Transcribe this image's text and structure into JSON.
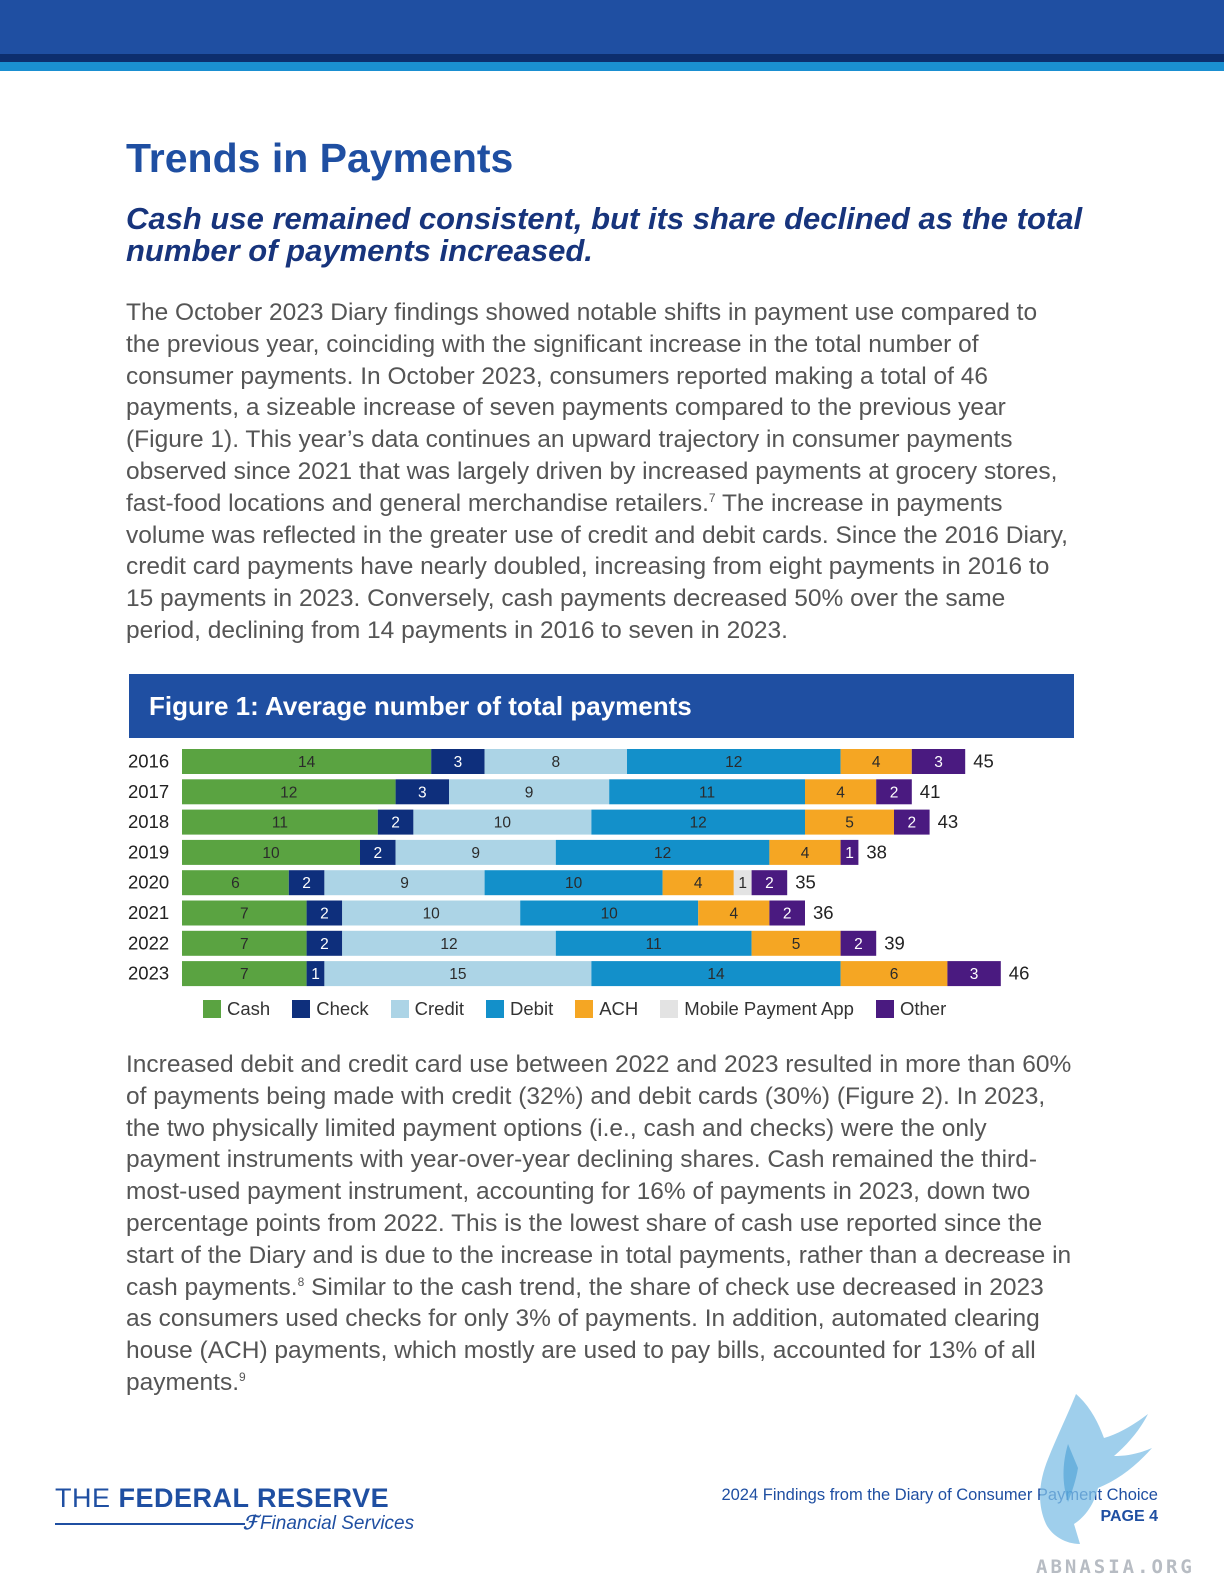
{
  "page": {
    "title": "Trends in Payments",
    "subtitle": "Cash use remained consistent, but its share declined as the total number of payments increased."
  },
  "paragraph1": {
    "text_before": "The October 2023 Diary findings showed notable shifts in payment use compared to the previous year, coinciding with the significant increase in the total number of consumer payments. In October 2023, consumers reported making a total of 46 payments, a sizeable increase of seven payments compared to the previous year (Figure 1). This year’s data continues an upward trajectory in consumer payments observed since 2021 that was largely driven by increased payments at grocery stores, fast-food locations and general merchandise retailers.",
    "footnote": "7",
    "text_after": " The increase in payments volume was reflected in the greater use of credit and debit cards. Since the 2016 Diary, credit card payments have nearly doubled, increasing from eight payments in 2016 to 15 payments in 2023. Conversely, cash payments decreased 50% over the same period, declining from 14 payments in 2016 to seven in 2023."
  },
  "figure": {
    "header": "Figure 1: Average number of total payments"
  },
  "chart_data": {
    "type": "bar",
    "orientation": "horizontal",
    "stacked": true,
    "title": "Figure 1: Average number of total payments",
    "categories": [
      "2016",
      "2017",
      "2018",
      "2019",
      "2020",
      "2021",
      "2022",
      "2023"
    ],
    "series": [
      {
        "name": "Cash",
        "color": "#5aa341",
        "values": [
          14,
          12,
          11,
          10,
          6,
          7,
          7,
          7
        ]
      },
      {
        "name": "Check",
        "color": "#0e2f7c",
        "values": [
          3,
          3,
          2,
          2,
          2,
          2,
          2,
          1
        ]
      },
      {
        "name": "Credit",
        "color": "#acd4e6",
        "values": [
          8,
          9,
          10,
          9,
          9,
          10,
          12,
          15
        ]
      },
      {
        "name": "Debit",
        "color": "#1390ca",
        "values": [
          12,
          11,
          12,
          12,
          10,
          10,
          11,
          14
        ]
      },
      {
        "name": "ACH",
        "color": "#f5a623",
        "values": [
          4,
          4,
          5,
          4,
          4,
          4,
          5,
          6
        ]
      },
      {
        "name": "Mobile Payment App",
        "color": "#e3e3e3",
        "values": [
          0,
          0,
          0,
          0,
          1,
          0,
          0,
          0
        ]
      },
      {
        "name": "Other",
        "color": "#4a1a80",
        "values": [
          3,
          2,
          2,
          1,
          2,
          2,
          2,
          3
        ]
      }
    ],
    "totals": [
      45,
      41,
      43,
      38,
      35,
      36,
      39,
      46
    ],
    "legend_position": "bottom",
    "grid": false
  },
  "paragraph2": {
    "text_before": "Increased debit and credit card use between 2022 and 2023 resulted in more than 60% of payments being made with credit (32%) and debit cards (30%) (Figure 2). In 2023, the two physically limited payment options (i.e., cash and checks) were the only payment instruments with year-over-year declining shares. Cash remained the third-most-used payment instrument, accounting for 16% of payments in 2023, down two percentage points from 2022. This is the lowest share of cash use reported since the start of the Diary and is due to the increase in total payments, rather than a decrease in cash payments.",
    "footnote1": "8",
    "text_middle": " Similar to the cash trend, the share of check use decreased in 2023 as consumers used checks for only 3% of payments. In addition, automated clearing house (ACH) payments, which mostly are used to pay bills, accounted for 13% of all payments.",
    "footnote2": "9"
  },
  "footer": {
    "logo_the": "THE ",
    "logo_name": "FEDERAL RESERVE",
    "logo_sub": "Financial Services",
    "report_title": "2024 Findings from the Diary of Consumer Payment Choice",
    "page_label": "PAGE 4",
    "watermark": "ABNASIA.ORG"
  },
  "colors": {
    "brand_blue": "#1f4fa2",
    "navy": "#17347c"
  }
}
